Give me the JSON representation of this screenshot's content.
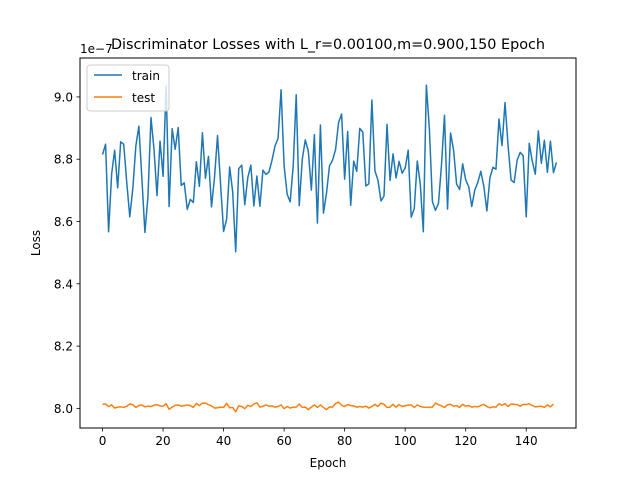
{
  "chart_data": {
    "type": "line",
    "title": "Discriminator Losses with L_r=0.00100,m=0.900,150 Epoch",
    "xlabel": "Epoch",
    "ylabel": "Loss",
    "y_offset_label": "1e−7",
    "xlim": [
      -7.45,
      156.45
    ],
    "ylim": [
      7.937,
      9.125
    ],
    "x_ticks": [
      0,
      20,
      40,
      60,
      80,
      100,
      120,
      140
    ],
    "x_tick_labels": [
      "0",
      "20",
      "40",
      "60",
      "80",
      "100",
      "120",
      "140"
    ],
    "y_ticks": [
      8.0,
      8.2,
      8.4,
      8.6,
      8.8,
      9.0
    ],
    "y_tick_labels": [
      "8.0",
      "8.2",
      "8.4",
      "8.6",
      "8.8",
      "9.0"
    ],
    "grid": false,
    "legend_position": "top-left",
    "series": [
      {
        "name": "train",
        "color": "#1f77b4",
        "values": [
          8.815,
          8.848,
          8.567,
          8.752,
          8.829,
          8.708,
          8.856,
          8.848,
          8.725,
          8.615,
          8.706,
          8.842,
          8.906,
          8.738,
          8.565,
          8.679,
          8.934,
          8.832,
          8.683,
          8.858,
          8.745,
          9.035,
          8.648,
          8.898,
          8.832,
          8.902,
          8.716,
          8.724,
          8.639,
          8.671,
          8.661,
          8.792,
          8.713,
          8.885,
          8.739,
          8.809,
          8.647,
          8.742,
          8.876,
          8.72,
          8.568,
          8.607,
          8.775,
          8.696,
          8.503,
          8.77,
          8.781,
          8.654,
          8.741,
          8.781,
          8.65,
          8.746,
          8.649,
          8.765,
          8.751,
          8.759,
          8.797,
          8.843,
          8.867,
          9.023,
          8.778,
          8.688,
          8.663,
          8.778,
          9.007,
          8.651,
          8.8,
          8.862,
          8.826,
          8.701,
          8.879,
          8.595,
          8.91,
          8.627,
          8.691,
          8.779,
          8.797,
          8.831,
          8.918,
          8.945,
          8.736,
          8.889,
          8.652,
          8.794,
          8.761,
          8.899,
          8.887,
          8.714,
          8.721,
          8.99,
          8.763,
          8.733,
          8.666,
          8.682,
          8.912,
          8.732,
          8.817,
          8.74,
          8.793,
          8.755,
          8.772,
          8.829,
          8.614,
          8.641,
          8.794,
          8.719,
          8.567,
          9.038,
          8.897,
          8.664,
          8.636,
          8.658,
          8.781,
          8.941,
          8.64,
          8.884,
          8.829,
          8.72,
          8.703,
          8.785,
          8.734,
          8.712,
          8.648,
          8.701,
          8.725,
          8.761,
          8.713,
          8.634,
          8.74,
          8.774,
          8.768,
          8.929,
          8.844,
          8.982,
          8.844,
          8.733,
          8.725,
          8.797,
          8.822,
          8.811,
          8.615,
          8.851,
          8.794,
          8.752,
          8.891,
          8.787,
          8.861,
          8.758,
          8.858,
          8.757,
          8.79
        ]
      },
      {
        "name": "test",
        "color": "#ff7f0e",
        "values": [
          8.013,
          8.014,
          8.006,
          8.011,
          8.001,
          8.004,
          8.005,
          8.003,
          8.007,
          8.014,
          8.012,
          8.003,
          8.009,
          8.011,
          8.005,
          8.007,
          8.006,
          8.01,
          8.012,
          8.008,
          8.007,
          8.015,
          7.997,
          8.004,
          8.01,
          8.011,
          8.007,
          8.009,
          8.011,
          8.009,
          8.003,
          8.016,
          8.009,
          8.017,
          8.017,
          8.012,
          8.008,
          8.001,
          8.002,
          8.004,
          8.003,
          8.016,
          8.002,
          8.003,
          7.989,
          8.008,
          8.006,
          7.999,
          8.01,
          8.006,
          8.014,
          8.018,
          8.004,
          8.007,
          8.011,
          8.007,
          8.008,
          8.004,
          8.006,
          8.011,
          7.999,
          8.006,
          8.001,
          8.004,
          8.004,
          8.014,
          8.003,
          8.004,
          7.996,
          8.004,
          8.011,
          8.003,
          8.011,
          8.003,
          7.996,
          8.005,
          8.004,
          8.016,
          8.02,
          8.01,
          8.006,
          8.012,
          8.009,
          8.008,
          8.004,
          8.006,
          8.004,
          8.007,
          8.001,
          8.006,
          8.013,
          8.006,
          8.017,
          8.013,
          8.003,
          8.004,
          8.013,
          8.004,
          8.012,
          8.006,
          8.008,
          8.011,
          8.011,
          8.003,
          8.011,
          8.006,
          8.004,
          8.003,
          8.004,
          8.004,
          8.017,
          8.012,
          8.008,
          8.003,
          8.012,
          8.013,
          8.007,
          8.009,
          8.003,
          8.013,
          8.007,
          8.009,
          8.004,
          8.006,
          8.005,
          8.009,
          8.013,
          8.006,
          8.002,
          8.005,
          8.004,
          8.015,
          8.01,
          8.015,
          8.006,
          8.014,
          8.013,
          8.012,
          8.007,
          8.013,
          8.012,
          8.015,
          8.009,
          8.005,
          8.006,
          8.007,
          8.003,
          8.011,
          8.005,
          8.014
        ]
      }
    ]
  }
}
